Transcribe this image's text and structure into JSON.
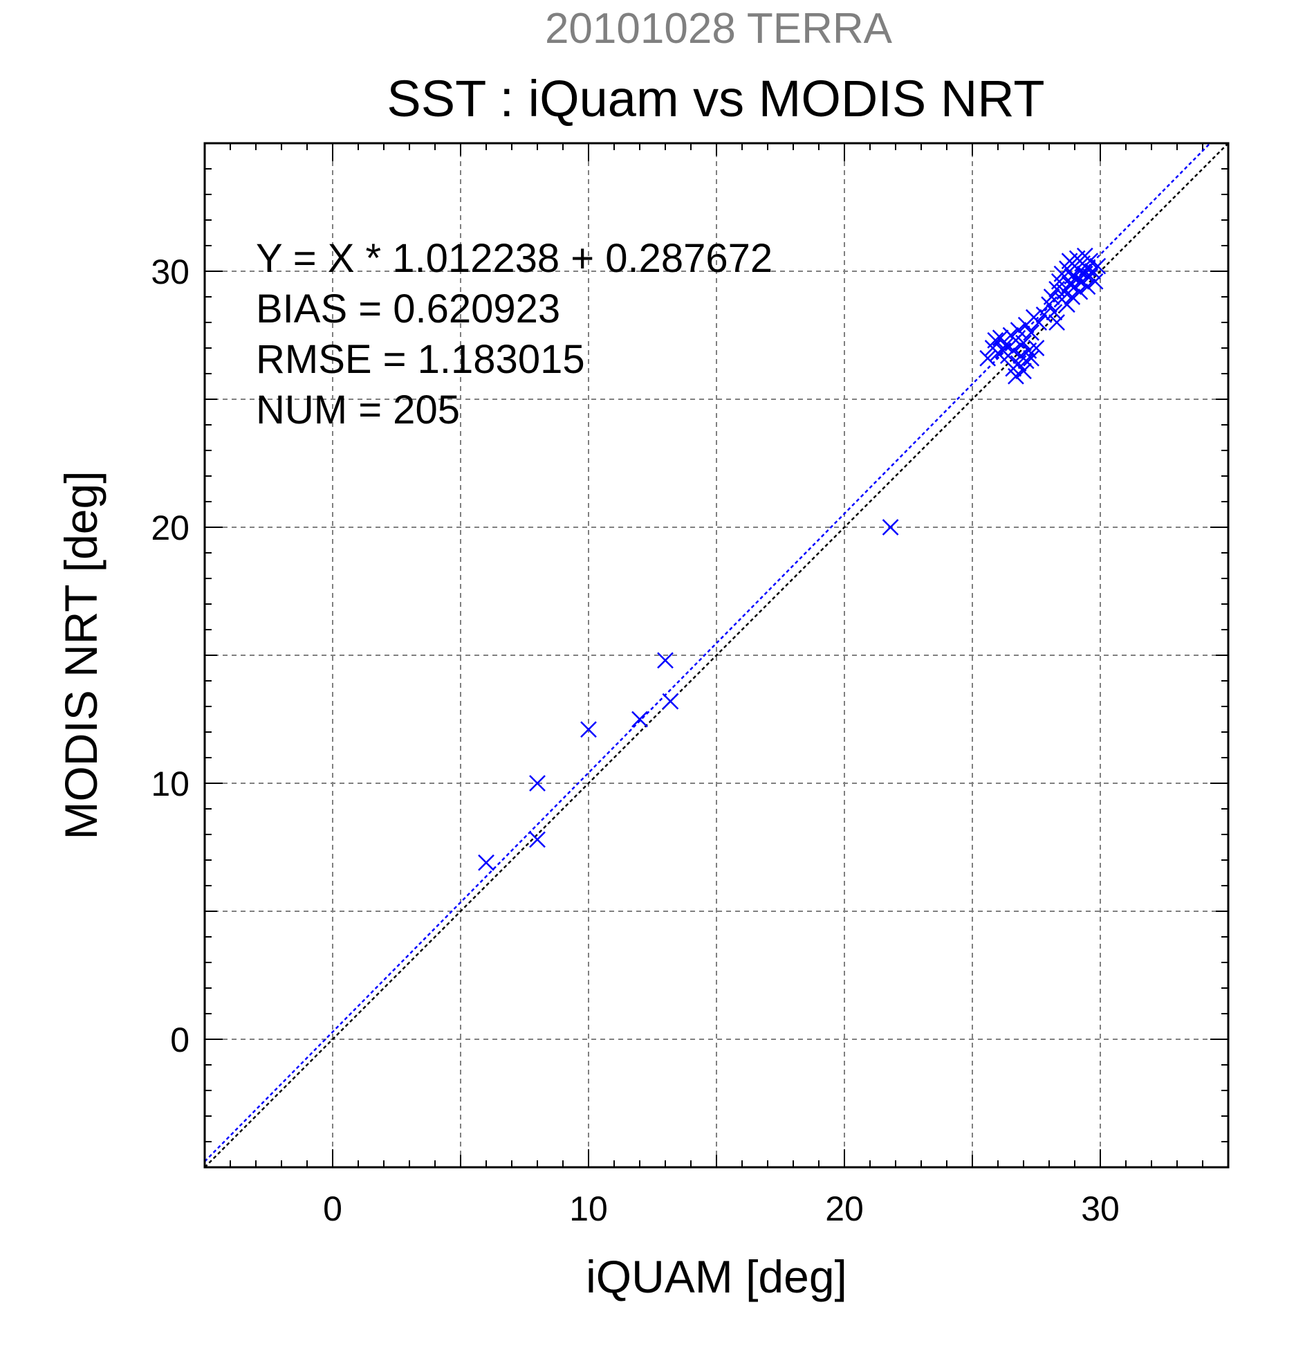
{
  "chart_data": {
    "type": "scatter",
    "supertitle": "20101028 TERRA",
    "title": "SST : iQuam vs MODIS NRT",
    "xlabel": "iQUAM [deg]",
    "ylabel": "MODIS NRT [deg]",
    "xlim": [
      -5,
      35
    ],
    "ylim": [
      -5,
      35
    ],
    "xticks": [
      0,
      10,
      20,
      30
    ],
    "yticks": [
      0,
      10,
      20,
      30
    ],
    "xtick_labels": [
      "0",
      "10",
      "20",
      "30"
    ],
    "ytick_labels": [
      "0",
      "10",
      "20",
      "30"
    ],
    "grid": true,
    "marker": "x",
    "colors": {
      "points": "#0000ff",
      "fit_line": "#0000ff",
      "identity_line": "#000000",
      "grid": "#808080",
      "supertitle": "#808080"
    },
    "fit": {
      "slope": 1.012238,
      "intercept": 0.287672
    },
    "stats_text": [
      "Y = X * 1.012238 + 0.287672",
      "BIAS = 0.620923",
      "RMSE = 1.183015",
      "NUM = 205"
    ],
    "points": [
      [
        6.0,
        6.9
      ],
      [
        8.0,
        10.0
      ],
      [
        8.0,
        7.8
      ],
      [
        10.0,
        12.1
      ],
      [
        12.0,
        12.5
      ],
      [
        13.0,
        14.8
      ],
      [
        13.2,
        13.2
      ],
      [
        21.8,
        20.0
      ],
      [
        25.6,
        26.6
      ],
      [
        25.8,
        27.0
      ],
      [
        25.9,
        27.3
      ],
      [
        26.0,
        26.8
      ],
      [
        26.1,
        27.4
      ],
      [
        26.2,
        26.9
      ],
      [
        26.3,
        27.1
      ],
      [
        26.4,
        26.7
      ],
      [
        26.5,
        27.5
      ],
      [
        26.6,
        26.2
      ],
      [
        26.6,
        26.9
      ],
      [
        26.7,
        25.9
      ],
      [
        26.7,
        27.3
      ],
      [
        26.8,
        26.4
      ],
      [
        26.8,
        27.7
      ],
      [
        26.9,
        26.7
      ],
      [
        27.0,
        26.1
      ],
      [
        27.0,
        27.2
      ],
      [
        27.1,
        26.5
      ],
      [
        27.1,
        27.9
      ],
      [
        27.2,
        26.9
      ],
      [
        27.3,
        26.6
      ],
      [
        27.3,
        27.6
      ],
      [
        27.4,
        28.2
      ],
      [
        27.5,
        27.0
      ],
      [
        27.6,
        28.0
      ],
      [
        27.8,
        28.3
      ],
      [
        28.0,
        28.7
      ],
      [
        28.1,
        29.0
      ],
      [
        28.2,
        28.4
      ],
      [
        28.3,
        29.3
      ],
      [
        28.3,
        28.0
      ],
      [
        28.4,
        29.6
      ],
      [
        28.5,
        28.9
      ],
      [
        28.5,
        29.9
      ],
      [
        28.6,
        29.2
      ],
      [
        28.7,
        30.1
      ],
      [
        28.7,
        28.7
      ],
      [
        28.8,
        29.5
      ],
      [
        28.8,
        30.4
      ],
      [
        28.9,
        29.0
      ],
      [
        28.9,
        29.8
      ],
      [
        29.0,
        30.2
      ],
      [
        29.0,
        29.4
      ],
      [
        29.1,
        30.5
      ],
      [
        29.1,
        29.7
      ],
      [
        29.2,
        30.0
      ],
      [
        29.2,
        29.2
      ],
      [
        29.3,
        30.3
      ],
      [
        29.3,
        29.6
      ],
      [
        29.4,
        29.9
      ],
      [
        29.4,
        30.6
      ],
      [
        29.5,
        30.1
      ],
      [
        29.5,
        29.4
      ],
      [
        29.6,
        29.8
      ],
      [
        29.6,
        30.4
      ],
      [
        29.7,
        30.0
      ],
      [
        29.8,
        29.6
      ],
      [
        29.9,
        30.2
      ]
    ]
  }
}
